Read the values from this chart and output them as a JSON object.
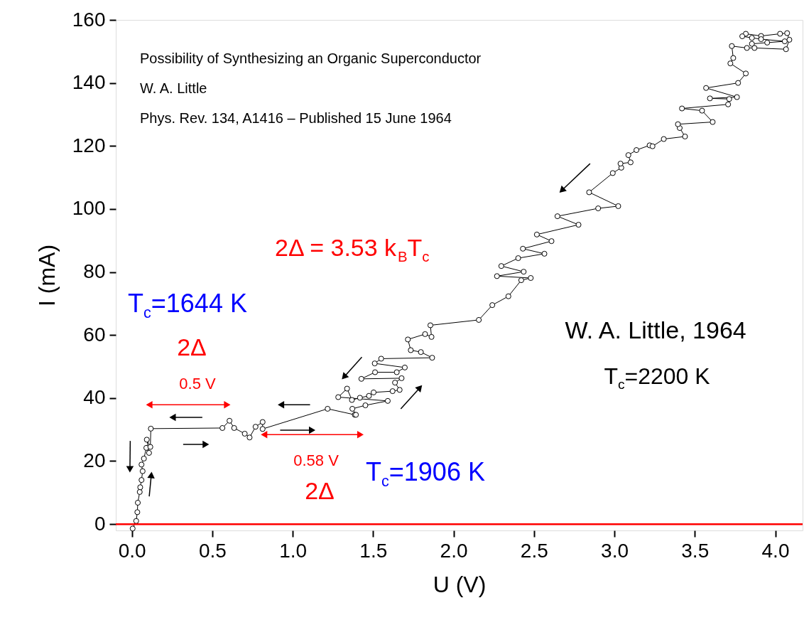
{
  "chart_data": {
    "type": "line",
    "xlabel": "U (V)",
    "ylabel": "I (mA)",
    "xlim": [
      -0.1,
      4.17
    ],
    "ylim": [
      -2,
      160
    ],
    "xticks": [
      {
        "value": 0,
        "label": "0.0"
      },
      {
        "value": 0.5,
        "label": "0.5"
      },
      {
        "value": 1,
        "label": "1.0"
      },
      {
        "value": 1.5,
        "label": "1.5"
      },
      {
        "value": 2,
        "label": "2.0"
      },
      {
        "value": 2.5,
        "label": "2.5"
      },
      {
        "value": 3,
        "label": "3.0"
      },
      {
        "value": 3.5,
        "label": "3.5"
      },
      {
        "value": 4,
        "label": "4.0"
      }
    ],
    "yticks": [
      0,
      20,
      40,
      60,
      80,
      100,
      120,
      140,
      160
    ],
    "grid": false,
    "marker": "circle",
    "line_style": "solid",
    "series": [
      {
        "color": "#000000",
        "x": [
          0.005,
          0.027,
          0.034,
          0.037,
          0.049,
          0.052,
          0.06,
          0.067,
          0.06,
          0.075,
          0.09,
          0.107,
          0.093,
          0.115,
          0.118,
          0.563,
          0.607,
          0.636,
          0.702,
          0.732,
          0.769,
          0.813,
          0.813,
          1.217,
          1.386,
          1.393,
          1.371,
          1.452,
          1.591,
          1.283,
          1.338,
          1.368,
          1.418,
          1.474,
          1.503,
          1.621,
          1.665,
          1.636,
          1.677,
          1.427,
          1.512,
          1.647,
          1.697,
          1.51,
          1.55,
          1.867,
          1.797,
          1.734,
          1.716,
          1.823,
          1.863,
          1.856,
          2.157,
          2.241,
          2.341,
          2.421,
          2.48,
          2.27,
          2.436,
          2.297,
          2.402,
          2.565,
          2.431,
          2.609,
          2.518,
          2.777,
          2.646,
          2.899,
          3.024,
          2.843,
          2.99,
          3.043,
          3.038,
          3.101,
          3.087,
          3.137,
          3.219,
          3.237,
          3.307,
          3.439,
          3.406,
          3.395,
          3.611,
          3.545,
          3.42,
          3.707,
          3.714,
          3.594,
          3.762,
          3.57,
          3.769,
          3.817,
          3.721,
          3.739,
          3.73,
          3.824,
          3.871,
          4.067,
          4.088,
          4.074,
          4.03,
          3.912,
          3.817,
          3.795,
          3.855,
          3.912,
          4.059,
          3.95,
          3.855
        ],
        "values": [
          -1.4,
          1,
          3.8,
          6.8,
          10.2,
          11.7,
          14,
          16.8,
          18.9,
          20.8,
          24.2,
          22.6,
          26.8,
          24.5,
          30.3,
          30.5,
          32.8,
          30.5,
          28.7,
          27.5,
          30.9,
          32.4,
          30.2,
          36.6,
          34.7,
          34.7,
          36.6,
          37.7,
          39.1,
          40.3,
          43,
          39.4,
          40.1,
          40.7,
          41.8,
          42.2,
          42.6,
          44.9,
          46.3,
          46.1,
          48.2,
          48.2,
          49.7,
          51,
          52.5,
          52.8,
          54.6,
          55.2,
          58.6,
          60.3,
          59.4,
          63.1,
          64.8,
          69.5,
          72.3,
          77.4,
          78.1,
          78.7,
          80.1,
          81.9,
          84.4,
          85.8,
          87.4,
          89.8,
          91.9,
          95,
          97.7,
          100.2,
          100.9,
          105.3,
          111.4,
          113.1,
          114.4,
          114.8,
          117.1,
          118.7,
          120.2,
          119.9,
          122.2,
          123,
          125.7,
          126.9,
          127.6,
          131.2,
          131.9,
          133.2,
          134.9,
          135.1,
          135.5,
          138.4,
          140,
          143,
          146.2,
          147.9,
          151.7,
          151.1,
          151.1,
          150.7,
          153.7,
          155.8,
          155.6,
          154.9,
          155.6,
          154.8,
          154.3,
          153.9,
          153.2,
          152.8,
          152.4
        ]
      }
    ],
    "ref_lines": [
      {
        "axis": "y",
        "value": 0,
        "color": "#ff0000",
        "line_style": "solid"
      }
    ],
    "annotations": [
      "Possibility of Synthesizing an Organic Superconductor",
      "W. A. Little",
      "Phys. Rev. 134, A1416 – Published 15 June 1964",
      "2Δ = 3.53 k$_{B}$T$_{c}$",
      "T$_{c}$=1644 K",
      "2Δ",
      "0.5 V",
      "0.58 V",
      "2Δ",
      "T$_{c}$=1906 K",
      "W. A. Little, 1964",
      "T$_{c}$=2200 K"
    ]
  }
}
